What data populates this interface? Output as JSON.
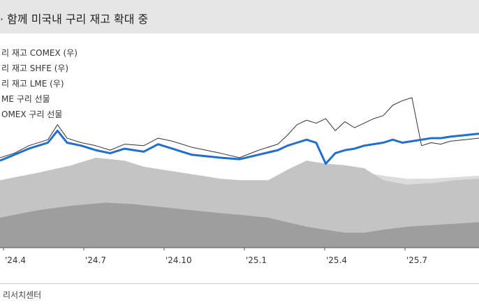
{
  "title": "· 함께 미국내 구리 재고 확대 중",
  "source": "리서치센터",
  "chart_data": {
    "type": "area",
    "x_tick_labels": [
      "'24.4",
      "'24.7",
      "'24.10",
      "'25.1",
      "'25.4",
      "'25.7"
    ],
    "legend": [
      "리 재고 COMEX (우)",
      "리 재고 SHFE (우)",
      "리 재고 LME (우)",
      "ME 구리 선물",
      "OMEX 구리 선물"
    ],
    "x_range": [
      0,
      10
    ],
    "y_range": [
      0,
      10
    ],
    "series": [
      {
        "name": "리 재고 COMEX (우)",
        "kind": "area",
        "color": "#dcdcdc",
        "x": [
          0,
          1.0,
          2.0,
          3.0,
          4.0,
          4.6,
          5.4,
          5.9,
          6.0,
          6.4,
          6.8,
          7.2,
          7.6,
          8.0,
          8.5,
          9.0,
          9.5,
          10
        ],
        "y": [
          4.0,
          4.2,
          4.5,
          4.3,
          4.0,
          3.9,
          3.8,
          3.9,
          5.2,
          5.8,
          5.6,
          5.4,
          5.0,
          4.8,
          4.6,
          4.6,
          4.7,
          4.8
        ]
      },
      {
        "name": "리 재고 SHFE (우)",
        "kind": "area",
        "color": "#c4c4c4",
        "x": [
          0,
          0.8,
          1.5,
          2.0,
          2.6,
          3.0,
          3.4,
          3.8,
          4.2,
          4.6,
          5.0,
          5.6,
          6.0,
          6.4,
          6.8,
          7.2,
          7.6,
          8.0,
          8.5,
          9.0,
          9.5,
          10
        ],
        "y": [
          4.5,
          5.0,
          5.5,
          6.0,
          5.8,
          5.4,
          5.2,
          5.0,
          4.8,
          4.6,
          4.5,
          4.5,
          5.2,
          5.8,
          5.6,
          5.5,
          5.3,
          4.5,
          4.2,
          4.3,
          4.5,
          4.6
        ]
      },
      {
        "name": "리 재고 LME (우)",
        "kind": "area",
        "color": "#9e9e9e",
        "x": [
          0,
          0.8,
          1.5,
          2.2,
          2.8,
          3.4,
          4.0,
          4.6,
          5.0,
          5.6,
          6.0,
          6.4,
          6.8,
          7.2,
          7.6,
          8.0,
          8.5,
          9.0,
          9.5,
          10
        ],
        "y": [
          2.0,
          2.5,
          2.8,
          3.0,
          2.9,
          2.7,
          2.5,
          2.3,
          2.2,
          2.0,
          1.7,
          1.4,
          1.2,
          1.0,
          1.0,
          1.2,
          1.4,
          1.5,
          1.6,
          1.7
        ]
      },
      {
        "name": "ME 구리 선물",
        "kind": "line",
        "color": "#333333",
        "x": [
          0,
          0.3,
          0.6,
          1.0,
          1.2,
          1.4,
          1.7,
          2.0,
          2.3,
          2.6,
          3.0,
          3.3,
          3.6,
          4.0,
          4.3,
          4.6,
          5.0,
          5.4,
          5.8,
          6.0,
          6.2,
          6.4,
          6.6,
          6.8,
          7.0,
          7.2,
          7.4,
          7.6,
          7.8,
          8.0,
          8.2,
          8.4,
          8.6,
          8.8,
          9.0,
          9.2,
          9.4,
          9.7,
          10
        ],
        "y": [
          6.0,
          6.3,
          6.8,
          7.2,
          8.2,
          7.3,
          7.0,
          6.8,
          6.5,
          6.9,
          6.8,
          7.3,
          7.1,
          6.7,
          6.5,
          6.3,
          6.0,
          6.5,
          6.9,
          7.5,
          8.2,
          8.5,
          8.3,
          8.6,
          7.8,
          8.4,
          8.0,
          8.3,
          8.6,
          8.8,
          9.5,
          9.8,
          10.0,
          6.8,
          7.0,
          6.9,
          7.1,
          7.2,
          7.3
        ]
      },
      {
        "name": "OMEX 구리 선물",
        "kind": "line",
        "color": "#1f6ed4",
        "x": [
          0,
          0.3,
          0.6,
          1.0,
          1.2,
          1.4,
          1.7,
          2.0,
          2.3,
          2.6,
          3.0,
          3.3,
          3.6,
          4.0,
          4.3,
          4.6,
          5.0,
          5.4,
          5.8,
          6.0,
          6.2,
          6.4,
          6.6,
          6.8,
          7.0,
          7.2,
          7.4,
          7.6,
          7.8,
          8.0,
          8.2,
          8.4,
          8.6,
          8.8,
          9.0,
          9.2,
          9.4,
          9.7,
          10
        ],
        "y": [
          5.8,
          6.2,
          6.6,
          7.0,
          7.8,
          7.0,
          6.8,
          6.5,
          6.3,
          6.6,
          6.4,
          6.9,
          6.6,
          6.2,
          6.1,
          6.0,
          5.9,
          6.2,
          6.5,
          6.8,
          7.0,
          7.2,
          7.0,
          5.6,
          6.3,
          6.5,
          6.6,
          6.8,
          6.9,
          7.0,
          7.2,
          7.0,
          7.1,
          7.2,
          7.3,
          7.3,
          7.4,
          7.5,
          7.6
        ]
      }
    ]
  }
}
